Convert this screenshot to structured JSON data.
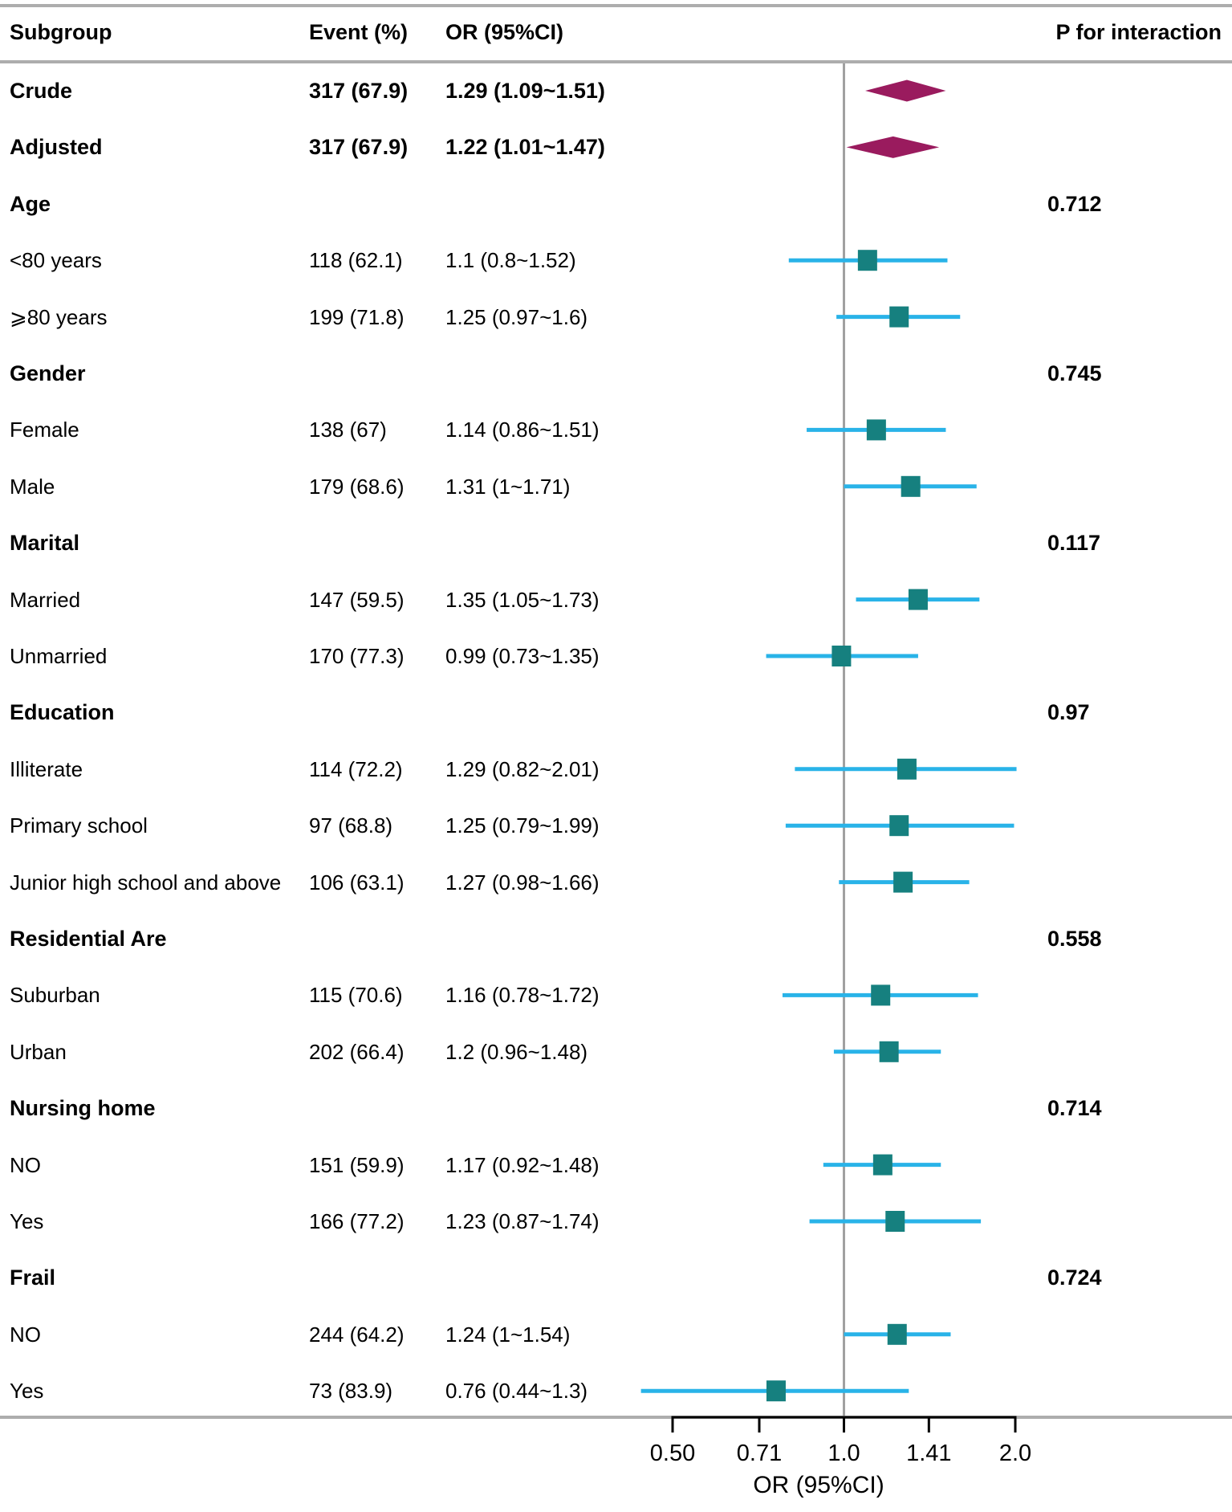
{
  "header": {
    "subgroup": "Subgroup",
    "event": "Event (%)",
    "or": "OR (95%CI)",
    "p_for_interaction": "P for interaction"
  },
  "colors": {
    "ci_line": "#29b3e8",
    "square": "#16807f",
    "diamond": "#9a1b5e",
    "rule": "#adadad",
    "ref_line": "#a0a0a0",
    "axis": "#000000"
  },
  "chart_data": {
    "type": "scatter",
    "subtype": "forest-plot",
    "xlabel": "OR (95%CI)",
    "x_scale": "log2",
    "x_range": [
      0.5,
      2.0
    ],
    "reference_line": 1.0,
    "legend": "none",
    "axis_ticks": [
      {
        "label": "0.50",
        "value": 0.5
      },
      {
        "label": "0.71",
        "value": 0.71
      },
      {
        "label": "1.0",
        "value": 1.0
      },
      {
        "label": "1.41",
        "value": 1.41
      },
      {
        "label": "2.0",
        "value": 2.0
      }
    ],
    "rows": [
      {
        "kind": "summary",
        "label": "Crude",
        "event": "317 (67.9)",
        "or_text": "1.29 (1.09~1.51)",
        "est": 1.29,
        "lo": 1.09,
        "hi": 1.51
      },
      {
        "kind": "summary",
        "label": "Adjusted",
        "event": "317 (67.9)",
        "or_text": "1.22 (1.01~1.47)",
        "est": 1.22,
        "lo": 1.01,
        "hi": 1.47
      },
      {
        "kind": "group",
        "label": "Age",
        "p": "0.712"
      },
      {
        "kind": "item",
        "label": "<80 years",
        "event": "118 (62.1)",
        "or_text": "1.1 (0.8~1.52)",
        "est": 1.1,
        "lo": 0.8,
        "hi": 1.52
      },
      {
        "kind": "item",
        "label": "⩾80 years",
        "event": "199 (71.8)",
        "or_text": "1.25 (0.97~1.6)",
        "est": 1.25,
        "lo": 0.97,
        "hi": 1.6
      },
      {
        "kind": "group",
        "label": "Gender",
        "p": "0.745"
      },
      {
        "kind": "item",
        "label": "Female",
        "event": "138 (67)",
        "or_text": "1.14 (0.86~1.51)",
        "est": 1.14,
        "lo": 0.86,
        "hi": 1.51
      },
      {
        "kind": "item",
        "label": "Male",
        "event": "179 (68.6)",
        "or_text": "1.31 (1~1.71)",
        "est": 1.31,
        "lo": 1.0,
        "hi": 1.71
      },
      {
        "kind": "group",
        "label": "Marital",
        "p": "0.117"
      },
      {
        "kind": "item",
        "label": "Married",
        "event": "147 (59.5)",
        "or_text": "1.35 (1.05~1.73)",
        "est": 1.35,
        "lo": 1.05,
        "hi": 1.73
      },
      {
        "kind": "item",
        "label": "Unmarried",
        "event": "170 (77.3)",
        "or_text": "0.99 (0.73~1.35)",
        "est": 0.99,
        "lo": 0.73,
        "hi": 1.35
      },
      {
        "kind": "group",
        "label": "Education",
        "p": "0.97"
      },
      {
        "kind": "item",
        "label": "Illiterate",
        "event": "114 (72.2)",
        "or_text": "1.29 (0.82~2.01)",
        "est": 1.29,
        "lo": 0.82,
        "hi": 2.01
      },
      {
        "kind": "item",
        "label": "Primary school",
        "event": "97 (68.8)",
        "or_text": "1.25 (0.79~1.99)",
        "est": 1.25,
        "lo": 0.79,
        "hi": 1.99
      },
      {
        "kind": "item",
        "label": "Junior high school and above",
        "event": "106 (63.1)",
        "or_text": "1.27 (0.98~1.66)",
        "est": 1.27,
        "lo": 0.98,
        "hi": 1.66
      },
      {
        "kind": "group",
        "label": "Residential Are",
        "p": "0.558"
      },
      {
        "kind": "item",
        "label": "Suburban",
        "event": "115 (70.6)",
        "or_text": "1.16 (0.78~1.72)",
        "est": 1.16,
        "lo": 0.78,
        "hi": 1.72
      },
      {
        "kind": "item",
        "label": "Urban",
        "event": "202 (66.4)",
        "or_text": "1.2 (0.96~1.48)",
        "est": 1.2,
        "lo": 0.96,
        "hi": 1.48
      },
      {
        "kind": "group",
        "label": "Nursing home",
        "p": "0.714"
      },
      {
        "kind": "item",
        "label": "NO",
        "event": "151 (59.9)",
        "or_text": "1.17 (0.92~1.48)",
        "est": 1.17,
        "lo": 0.92,
        "hi": 1.48
      },
      {
        "kind": "item",
        "label": "Yes",
        "event": "166 (77.2)",
        "or_text": "1.23 (0.87~1.74)",
        "est": 1.23,
        "lo": 0.87,
        "hi": 1.74
      },
      {
        "kind": "group",
        "label": "Frail",
        "p": "0.724"
      },
      {
        "kind": "item",
        "label": "NO",
        "event": "244 (64.2)",
        "or_text": "1.24 (1~1.54)",
        "est": 1.24,
        "lo": 1.0,
        "hi": 1.54
      },
      {
        "kind": "item",
        "label": "Yes",
        "event": "73 (83.9)",
        "or_text": "0.76 (0.44~1.3)",
        "est": 0.76,
        "lo": 0.44,
        "hi": 1.3
      }
    ]
  }
}
